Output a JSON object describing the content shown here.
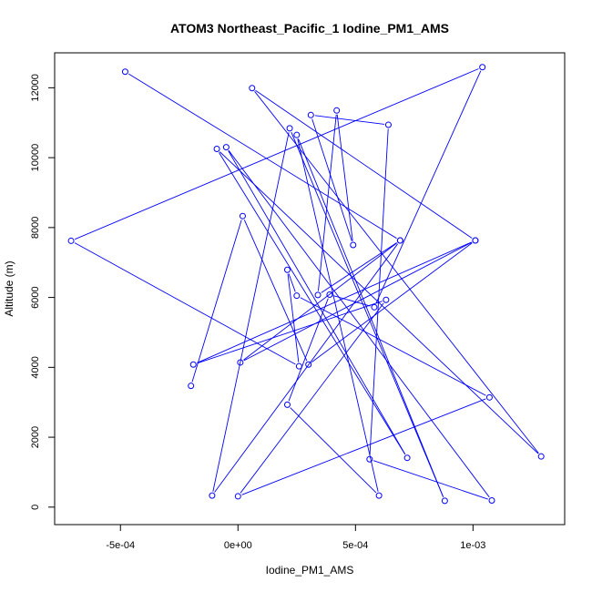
{
  "chart_data": {
    "type": "line",
    "title": "ATOM3 Northeast_Pacific_1 Iodine_PM1_AMS",
    "xlabel": "Iodine_PM1_AMS",
    "ylabel": "Altitude (m)",
    "xlim": [
      -0.00078,
      0.00139
    ],
    "ylim": [
      -500,
      13000
    ],
    "x_ticks": [
      {
        "value": -0.0005,
        "label": "-5e-04"
      },
      {
        "value": 0,
        "label": "0e+00"
      },
      {
        "value": 0.0005,
        "label": "5e-04"
      },
      {
        "value": 0.001,
        "label": "1e-03"
      }
    ],
    "y_ticks": [
      {
        "value": 0,
        "label": "0"
      },
      {
        "value": 2000,
        "label": "2000"
      },
      {
        "value": 4000,
        "label": "4000"
      },
      {
        "value": 6000,
        "label": "6000"
      },
      {
        "value": 8000,
        "label": "8000"
      },
      {
        "value": 10000,
        "label": "10000"
      },
      {
        "value": 12000,
        "label": "12000"
      }
    ],
    "grid": false,
    "line_color": "#0000ff",
    "marker": "open-circle",
    "points": [
      {
        "x": -0.00048,
        "y": 12460
      },
      {
        "x": 0.00069,
        "y": 7630
      },
      {
        "x": 1e-05,
        "y": 4140
      },
      {
        "x": 0.00101,
        "y": 7630
      },
      {
        "x": 6e-05,
        "y": 11990
      },
      {
        "x": 0.00129,
        "y": 1450
      },
      {
        "x": -9e-05,
        "y": 10250
      },
      {
        "x": 0.00072,
        "y": 1410
      },
      {
        "x": -5e-05,
        "y": 10300
      },
      {
        "x": 0.00108,
        "y": 190
      },
      {
        "x": 0.00056,
        "y": 1370
      },
      {
        "x": 0.00064,
        "y": 10940
      },
      {
        "x": 0.00031,
        "y": 11220
      },
      {
        "x": 0.00049,
        "y": 7500
      },
      {
        "x": 0.00042,
        "y": 11350
      },
      {
        "x": 0.00034,
        "y": 6070
      },
      {
        "x": 0.00069,
        "y": 7630
      },
      {
        "x": -0.00011,
        "y": 330
      },
      {
        "x": 0.00022,
        "y": 10840
      },
      {
        "x": 0.00088,
        "y": 180
      },
      {
        "x": 0.00025,
        "y": 10650
      },
      {
        "x": 0.0006,
        "y": 330
      },
      {
        "x": 0.00021,
        "y": 2930
      },
      {
        "x": 0.00039,
        "y": 6080
      },
      {
        "x": 0.00058,
        "y": 5720
      },
      {
        "x": 0.00104,
        "y": 12590
      },
      {
        "x": -0.00071,
        "y": 7620
      },
      {
        "x": 0.00026,
        "y": 4030
      },
      {
        "x": 0.00021,
        "y": 6790
      },
      {
        "x": 0.00025,
        "y": 6050
      },
      {
        "x": 0.00107,
        "y": 3140
      },
      {
        "x": -0.0,
        "y": 310
      },
      {
        "x": 0.00063,
        "y": 5930
      },
      {
        "x": -0.00019,
        "y": 4080
      },
      {
        "x": 0.00101,
        "y": 7630
      },
      {
        "x": 0.0003,
        "y": 4080
      },
      {
        "x": 2e-05,
        "y": 8330
      },
      {
        "x": -0.0002,
        "y": 3470
      }
    ]
  }
}
